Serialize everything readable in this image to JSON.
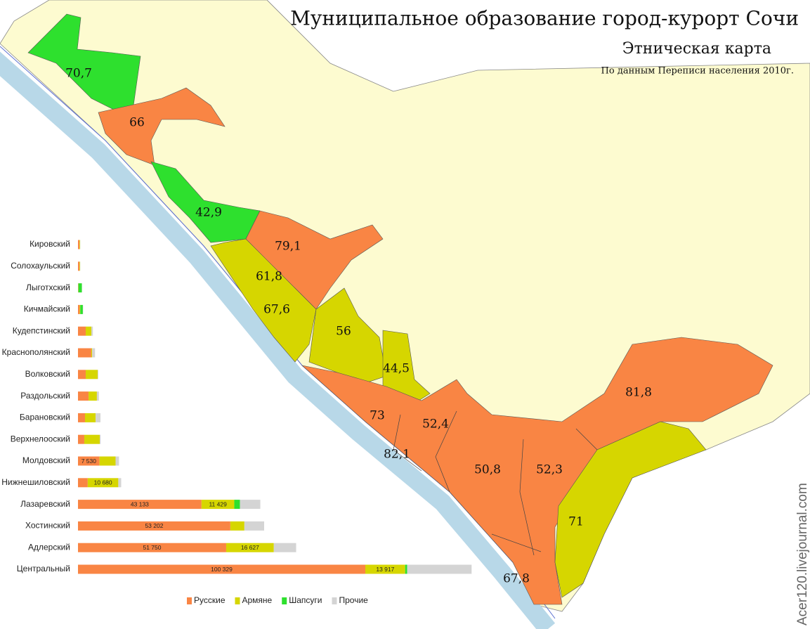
{
  "title": "Муниципальное образование город-курорт Сочи",
  "subtitle": "Этническая карта",
  "source": "По данным Переписи населения 2010г.",
  "watermark": "Acer120.livejournal.com",
  "map_labels": [
    "70,7",
    "66",
    "42,9",
    "79,1",
    "61,8",
    "67,6",
    "56",
    "44,5",
    "73",
    "82,1",
    "52,4",
    "50,8",
    "52,3",
    "81,8",
    "71",
    "67,8"
  ],
  "chart_data": {
    "type": "bar",
    "orientation": "horizontal",
    "stacked": true,
    "categories": [
      "Кировский",
      "Солохаульский",
      "Лыготхский",
      "Кичмайский",
      "Кудепстинский",
      "Краснополянский",
      "Волковский",
      "Раздольский",
      "Барановский",
      "Верхнелооский",
      "Молдовский",
      "Нижнешиловский",
      "Лазаревский",
      "Хостинский",
      "Адлерский",
      "Центральный"
    ],
    "series": [
      {
        "name": "Русские",
        "color": "#f98544",
        "values": [
          500,
          500,
          100,
          600,
          2700,
          4650,
          2700,
          3700,
          2450,
          2200,
          7530,
          3400,
          43133,
          53202,
          51750,
          100329
        ],
        "value_labels": [
          null,
          null,
          null,
          null,
          null,
          null,
          null,
          null,
          null,
          null,
          "7 530",
          null,
          "43 133",
          "53 202",
          "51 750",
          "100 329"
        ]
      },
      {
        "name": "Армяне",
        "color": "#d6d600",
        "values": [
          200,
          200,
          50,
          200,
          2000,
          300,
          4200,
          2900,
          3700,
          5400,
          5600,
          10680,
          11429,
          4900,
          16627,
          13917
        ],
        "value_labels": [
          null,
          null,
          null,
          null,
          null,
          null,
          null,
          null,
          null,
          null,
          null,
          "10 680",
          "11 429",
          null,
          "16 627",
          "13 917"
        ]
      },
      {
        "name": "Шапсуги",
        "color": "#2ee02e",
        "values": [
          0,
          0,
          1200,
          900,
          0,
          0,
          0,
          0,
          0,
          0,
          0,
          0,
          2000,
          0,
          0,
          700
        ]
      },
      {
        "name": "Прочие",
        "color": "#d4d4d4",
        "values": [
          100,
          100,
          50,
          100,
          500,
          1000,
          200,
          700,
          1700,
          300,
          1200,
          1000,
          7100,
          6900,
          7800,
          22500
        ]
      }
    ]
  }
}
